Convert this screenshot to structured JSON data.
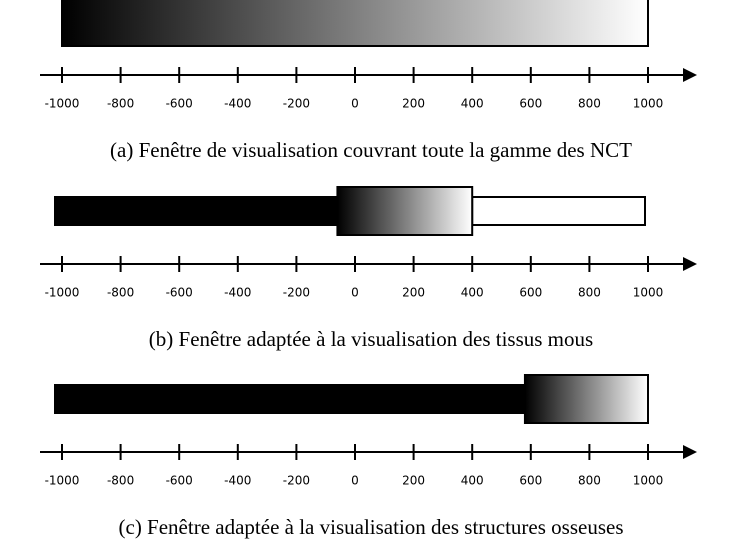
{
  "xlim": [
    -1000,
    1000
  ],
  "panels": [
    {
      "ticks": [
        -1000,
        -800,
        -600,
        -400,
        -200,
        0,
        200,
        400,
        600,
        800,
        1000
      ],
      "window": [
        -1000,
        1000
      ],
      "caption": "(a) Fenêtre de visualisation couvrant toute la gamme des NCT"
    },
    {
      "ticks": [
        -1000,
        -800,
        -600,
        -400,
        -200,
        0,
        200,
        400,
        600,
        800,
        1000
      ],
      "window": [
        -60,
        400
      ],
      "caption": "(b) Fenêtre adaptée à la visualisation des tissus mous"
    },
    {
      "ticks": [
        -1000,
        -800,
        -600,
        -400,
        -200,
        0,
        200,
        400,
        600,
        800,
        1000
      ],
      "window": [
        580,
        1000
      ],
      "caption": "(c) Fenêtre adaptée à la visualisation des structures osseuses"
    }
  ]
}
